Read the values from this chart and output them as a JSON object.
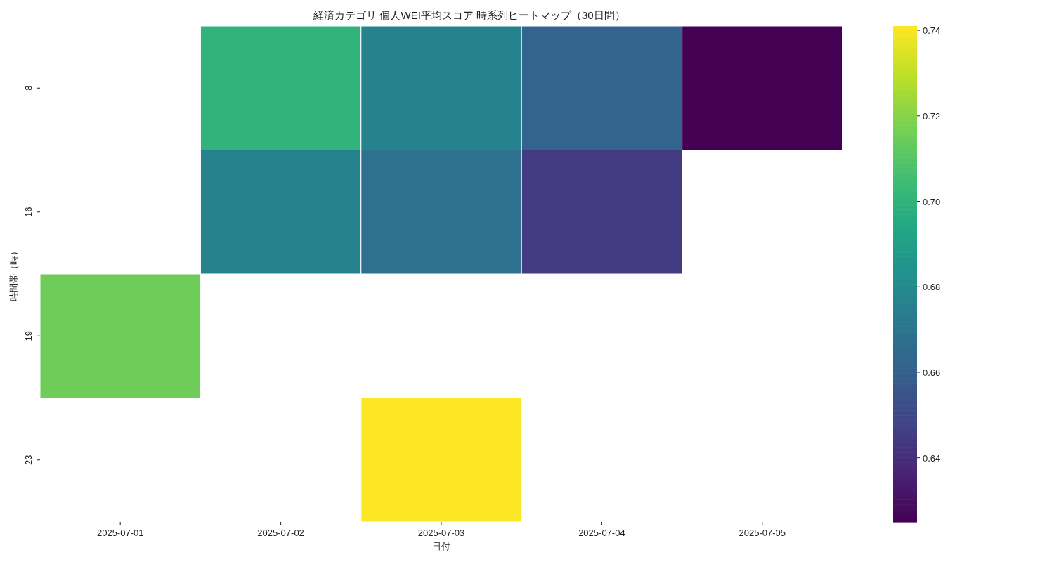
{
  "chart_data": {
    "type": "heatmap",
    "title": "経済カテゴリ 個人WEI平均スコア 時系列ヒートマップ（30日間）",
    "xlabel": "日付",
    "ylabel": "時間帯（時）",
    "categories": [
      "2025-07-01",
      "2025-07-02",
      "2025-07-03",
      "2025-07-04",
      "2025-07-05"
    ],
    "y_categories": [
      "8",
      "16",
      "19",
      "23"
    ],
    "cells": [
      [
        null,
        0.7,
        0.676,
        0.662,
        0.625
      ],
      [
        null,
        0.676,
        0.668,
        0.645,
        null
      ],
      [
        0.715,
        null,
        null,
        null,
        null
      ],
      [
        null,
        null,
        0.741,
        null,
        null
      ]
    ],
    "clim": [
      0.625,
      0.741
    ],
    "cticks": [
      0.64,
      0.66,
      0.68,
      {
        "value": 0.7,
        "label": "0.70"
      },
      0.72,
      0.74
    ]
  }
}
